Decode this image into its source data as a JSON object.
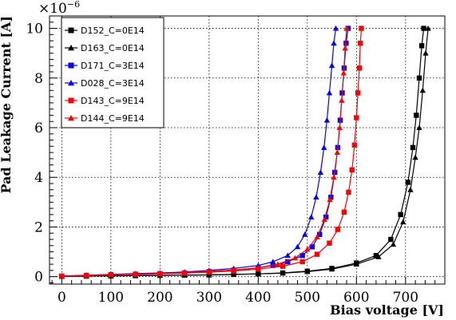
{
  "chart_data": {
    "type": "scatter",
    "title": "",
    "xlabel": "Bias voltage [V]",
    "ylabel": "Pad Leakage Current [A]",
    "y_multiplier": "×10",
    "y_exponent": "−6",
    "xlim": [
      -25,
      780
    ],
    "ylim": [
      -0.3,
      10.5
    ],
    "x_ticks": [
      "0",
      "100",
      "200",
      "300",
      "400",
      "500",
      "600",
      "700"
    ],
    "y_ticks": [
      "0",
      "2",
      "4",
      "6",
      "8",
      "10"
    ],
    "grid": true,
    "grid_style": "dotted",
    "legend_position": "top-left",
    "series": [
      {
        "name": "D152_C=0E14",
        "color": "#000000",
        "marker": "square",
        "points": [
          [
            0,
            0.01
          ],
          [
            50,
            0.02
          ],
          [
            100,
            0.03
          ],
          [
            150,
            0.04
          ],
          [
            200,
            0.05
          ],
          [
            250,
            0.06
          ],
          [
            300,
            0.07
          ],
          [
            350,
            0.09
          ],
          [
            400,
            0.11
          ],
          [
            450,
            0.15
          ],
          [
            500,
            0.22
          ],
          [
            550,
            0.33
          ],
          [
            600,
            0.55
          ],
          [
            640,
            0.85
          ],
          [
            670,
            1.5
          ],
          [
            690,
            2.5
          ],
          [
            705,
            3.8
          ],
          [
            715,
            5.2
          ],
          [
            722,
            6.5
          ],
          [
            728,
            8.0
          ],
          [
            733,
            9.3
          ],
          [
            737,
            10.0
          ]
        ]
      },
      {
        "name": "D163_C=0E14",
        "color": "#000000",
        "marker": "triangle",
        "points": [
          [
            0,
            0.01
          ],
          [
            50,
            0.02
          ],
          [
            100,
            0.03
          ],
          [
            150,
            0.04
          ],
          [
            200,
            0.05
          ],
          [
            250,
            0.06
          ],
          [
            300,
            0.07
          ],
          [
            350,
            0.09
          ],
          [
            400,
            0.11
          ],
          [
            450,
            0.14
          ],
          [
            500,
            0.2
          ],
          [
            550,
            0.3
          ],
          [
            600,
            0.5
          ],
          [
            645,
            0.8
          ],
          [
            675,
            1.3
          ],
          [
            695,
            2.2
          ],
          [
            710,
            3.5
          ],
          [
            720,
            4.8
          ],
          [
            728,
            6.0
          ],
          [
            735,
            7.5
          ],
          [
            741,
            9.0
          ],
          [
            746,
            10.0
          ]
        ]
      },
      {
        "name": "D171_C=3E14",
        "color": "#0000ff",
        "marker": "square",
        "points": [
          [
            0,
            0.02
          ],
          [
            50,
            0.05
          ],
          [
            100,
            0.08
          ],
          [
            150,
            0.1
          ],
          [
            200,
            0.12
          ],
          [
            250,
            0.15
          ],
          [
            300,
            0.2
          ],
          [
            350,
            0.26
          ],
          [
            400,
            0.35
          ],
          [
            430,
            0.45
          ],
          [
            460,
            0.6
          ],
          [
            490,
            0.85
          ],
          [
            510,
            1.2
          ],
          [
            525,
            1.7
          ],
          [
            538,
            2.4
          ],
          [
            548,
            3.2
          ],
          [
            556,
            4.2
          ],
          [
            562,
            5.2
          ],
          [
            567,
            6.3
          ],
          [
            571,
            7.4
          ],
          [
            575,
            8.4
          ],
          [
            579,
            9.4
          ],
          [
            583,
            10.0
          ]
        ]
      },
      {
        "name": "D028_C=3E14",
        "color": "#0000ff",
        "marker": "triangle",
        "points": [
          [
            0,
            0.02
          ],
          [
            50,
            0.06
          ],
          [
            100,
            0.09
          ],
          [
            150,
            0.12
          ],
          [
            200,
            0.15
          ],
          [
            250,
            0.19
          ],
          [
            300,
            0.25
          ],
          [
            350,
            0.33
          ],
          [
            400,
            0.45
          ],
          [
            430,
            0.6
          ],
          [
            460,
            0.85
          ],
          [
            480,
            1.2
          ],
          [
            495,
            1.7
          ],
          [
            508,
            2.4
          ],
          [
            518,
            3.2
          ],
          [
            527,
            4.2
          ],
          [
            534,
            5.2
          ],
          [
            540,
            6.3
          ],
          [
            545,
            7.4
          ],
          [
            550,
            8.5
          ],
          [
            554,
            9.4
          ],
          [
            558,
            10.0
          ]
        ]
      },
      {
        "name": "D143_C=9E14",
        "color": "#ff0000",
        "marker": "square",
        "points": [
          [
            0,
            0.02
          ],
          [
            50,
            0.04
          ],
          [
            100,
            0.07
          ],
          [
            150,
            0.09
          ],
          [
            200,
            0.11
          ],
          [
            250,
            0.14
          ],
          [
            300,
            0.18
          ],
          [
            350,
            0.23
          ],
          [
            400,
            0.3
          ],
          [
            450,
            0.42
          ],
          [
            490,
            0.6
          ],
          [
            520,
            0.9
          ],
          [
            545,
            1.35
          ],
          [
            562,
            1.9
          ],
          [
            575,
            2.6
          ],
          [
            584,
            3.4
          ],
          [
            591,
            4.3
          ],
          [
            596,
            5.3
          ],
          [
            600,
            6.4
          ],
          [
            603,
            7.4
          ],
          [
            606,
            8.4
          ],
          [
            608,
            9.4
          ],
          [
            610,
            10.0
          ]
        ]
      },
      {
        "name": "D144_C=9E14",
        "color": "#ff0000",
        "marker": "triangle",
        "points": [
          [
            0,
            0.02
          ],
          [
            50,
            0.05
          ],
          [
            100,
            0.08
          ],
          [
            150,
            0.1
          ],
          [
            200,
            0.13
          ],
          [
            250,
            0.16
          ],
          [
            300,
            0.21
          ],
          [
            350,
            0.27
          ],
          [
            400,
            0.36
          ],
          [
            440,
            0.5
          ],
          [
            475,
            0.75
          ],
          [
            500,
            1.1
          ],
          [
            520,
            1.6
          ],
          [
            535,
            2.3
          ],
          [
            546,
            3.1
          ],
          [
            554,
            4.0
          ],
          [
            561,
            5.0
          ],
          [
            566,
            6.0
          ],
          [
            570,
            7.1
          ],
          [
            574,
            8.2
          ],
          [
            577,
            9.2
          ],
          [
            580,
            10.0
          ]
        ]
      }
    ]
  }
}
